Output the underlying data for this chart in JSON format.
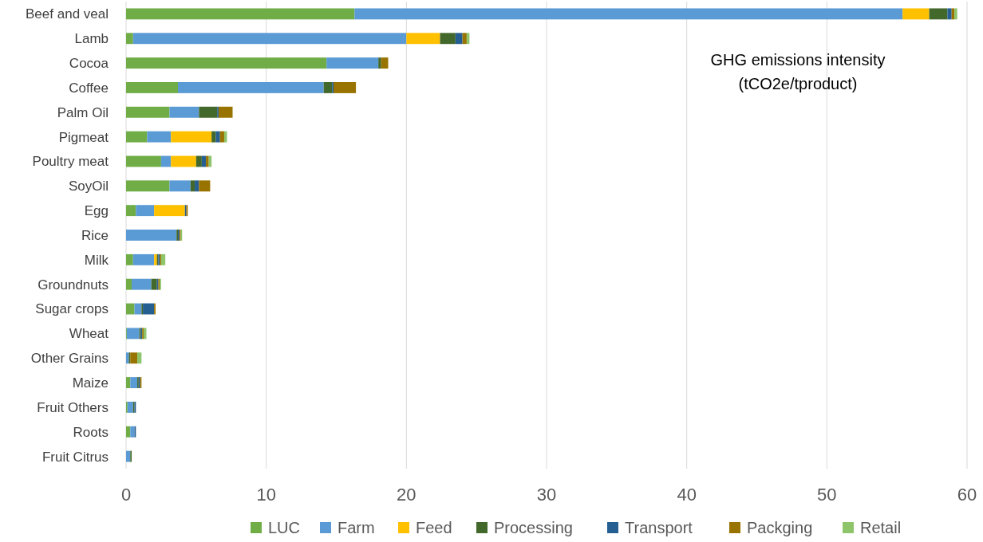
{
  "chart_data": {
    "type": "bar",
    "orientation": "horizontal",
    "stacked": true,
    "categories": [
      "Beef and veal",
      "Lamb",
      "Cocoa",
      "Coffee",
      "Palm Oil",
      "Pigmeat",
      "Poultry meat",
      "SoyOil",
      "Egg",
      "Rice",
      "Milk",
      "Groundnuts",
      "Sugar crops",
      "Wheat",
      "Other Grains",
      "Maize",
      "Fruit Others",
      "Roots",
      "Fruit Citrus"
    ],
    "series": [
      {
        "name": "LUC",
        "color": "#70ad47",
        "values": [
          16.3,
          0.5,
          14.3,
          3.7,
          3.1,
          1.5,
          2.5,
          3.1,
          0.7,
          0,
          0.5,
          0.4,
          0.6,
          0.05,
          0,
          0.3,
          0.1,
          0.3,
          0
        ]
      },
      {
        "name": "Farm",
        "color": "#5b9bd5",
        "values": [
          39.1,
          19.5,
          3.7,
          10.4,
          2.1,
          1.7,
          0.7,
          1.5,
          1.3,
          3.6,
          1.5,
          1.4,
          0.5,
          0.9,
          0.2,
          0.5,
          0.4,
          0.3,
          0.3
        ]
      },
      {
        "name": "Feed",
        "color": "#ffc000",
        "values": [
          1.9,
          2.4,
          0,
          0,
          0,
          2.9,
          1.8,
          0,
          2.2,
          0,
          0.2,
          0,
          0,
          0,
          0,
          0,
          0,
          0,
          0
        ]
      },
      {
        "name": "Processing",
        "color": "#43682b",
        "values": [
          1.3,
          1.1,
          0.2,
          0.6,
          1.3,
          0.3,
          0.4,
          0.3,
          0,
          0.1,
          0.1,
          0.4,
          0.1,
          0.1,
          0.1,
          0.1,
          0.1,
          0,
          0.1
        ]
      },
      {
        "name": "Transport",
        "color": "#255e91",
        "values": [
          0.3,
          0.5,
          0,
          0.1,
          0.1,
          0.3,
          0.3,
          0.3,
          0.1,
          0.1,
          0.1,
          0.1,
          0.8,
          0.1,
          0,
          0.1,
          0.1,
          0.1,
          0
        ]
      },
      {
        "name": "Packging",
        "color": "#997300",
        "values": [
          0.2,
          0.3,
          0.5,
          1.6,
          1.0,
          0.3,
          0.2,
          0.8,
          0.1,
          0.1,
          0.1,
          0.1,
          0.1,
          0.1,
          0.5,
          0.1,
          0,
          0,
          0
        ]
      },
      {
        "name": "Retail",
        "color": "#8fc56a",
        "values": [
          0.2,
          0.2,
          0,
          0,
          0,
          0.2,
          0.2,
          0,
          0,
          0.1,
          0.3,
          0.1,
          0,
          0.2,
          0.3,
          0,
          0,
          0,
          0
        ]
      }
    ],
    "xlim": [
      0,
      60
    ],
    "xticks": [
      0,
      10,
      20,
      30,
      40,
      50,
      60
    ],
    "grid": "x",
    "legend": "bottom",
    "annotations": [
      "GHG emissions intensity\n(tCO2e/tproduct)"
    ]
  }
}
